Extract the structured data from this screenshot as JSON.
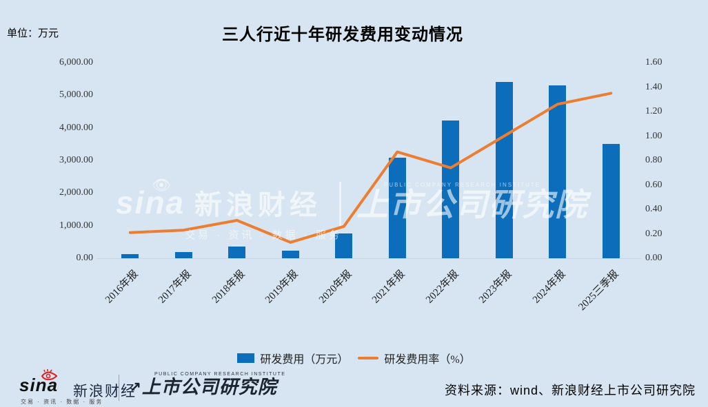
{
  "title": "三人行近十年研发费用变动情况",
  "unit_label": "单位：万元",
  "chart_data": {
    "type": "bar",
    "categories": [
      "2016年报",
      "2017年报",
      "2018年报",
      "2019年报",
      "2020年报",
      "2021年报",
      "2022年报",
      "2023年报",
      "2024年报",
      "2025三季报"
    ],
    "series": [
      {
        "name": "研发费用（万元）",
        "type": "bar",
        "axis": "left",
        "color": "#0c6eba",
        "values": [
          120,
          200,
          360,
          240,
          760,
          3080,
          4230,
          5400,
          5300,
          3500
        ]
      },
      {
        "name": "研发费用率（%）",
        "type": "line",
        "axis": "right",
        "color": "#ed7d31",
        "values": [
          0.21,
          0.23,
          0.31,
          0.13,
          0.26,
          0.87,
          0.74,
          1.0,
          1.26,
          1.35
        ]
      }
    ],
    "title": "三人行近十年研发费用变动情况",
    "xlabel": "",
    "ylabel_left": "单位：万元",
    "left_axis": {
      "min": 0,
      "max": 6000,
      "ticks": [
        "6,000.00",
        "5,000.00",
        "4,000.00",
        "3,000.00",
        "2,000.00",
        "1,000.00",
        "0.00"
      ]
    },
    "right_axis": {
      "min": 0,
      "max": 1.6,
      "ticks": [
        "1.60",
        "1.40",
        "1.20",
        "1.00",
        "0.80",
        "0.60",
        "0.40",
        "0.20",
        "0.00"
      ]
    },
    "grid": false,
    "legend_position": "bottom"
  },
  "legend": {
    "bar_label": "研发费用（万元）",
    "line_label": "研发费用率（%）"
  },
  "watermark": {
    "sina_script": "sina",
    "eye_icon": "sina-eye-icon",
    "brand": "新浪财经",
    "tagline": "交易 · 资讯 · 数据 · 服务",
    "institute": "上市公司研究院",
    "institute_en": "PUBLIC COMPANY RESEARCH INSTITUTE"
  },
  "footer": {
    "sina_script": "sina",
    "brand": "新浪财经",
    "tagline": "交易 · 资讯 · 数据 · 服务",
    "institute": "上市公司研究院",
    "institute_en": "PUBLIC COMPANY RESEARCH INSTITUTE",
    "institute_arrow": "↗",
    "source": "资料来源：wind、新浪财经上市公司研究院"
  },
  "colors": {
    "background": "#d6e5f1",
    "bar": "#0c6eba",
    "line": "#ed7d31",
    "tick_text": "#333333",
    "sina_red": "#e01f1f",
    "logo_dark": "#1c2431"
  }
}
